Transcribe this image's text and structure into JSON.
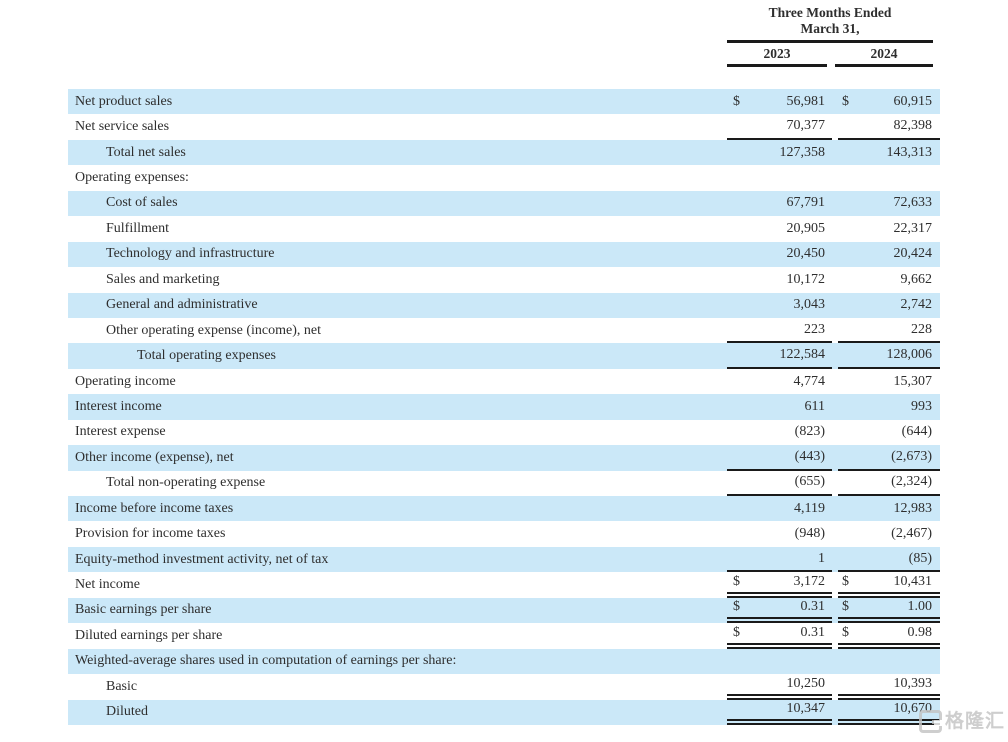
{
  "header": {
    "period_line1": "Three Months Ended",
    "period_line2": "March 31,",
    "years": [
      "2023",
      "2024"
    ]
  },
  "table": {
    "rows": [
      {
        "label": "Net product sales",
        "indent": 0,
        "shaded": true,
        "d1": "$",
        "v1": "56,981",
        "d2": "$",
        "v2": "60,915",
        "rule": "none"
      },
      {
        "label": "Net service sales",
        "indent": 0,
        "shaded": false,
        "d1": "",
        "v1": "70,377",
        "d2": "",
        "v2": "82,398",
        "rule": "single"
      },
      {
        "label": "Total net sales",
        "indent": 1,
        "shaded": true,
        "d1": "",
        "v1": "127,358",
        "d2": "",
        "v2": "143,313",
        "rule": "none"
      },
      {
        "label": "Operating expenses:",
        "indent": 0,
        "shaded": false,
        "d1": "",
        "v1": "",
        "d2": "",
        "v2": "",
        "rule": "none"
      },
      {
        "label": "Cost of sales",
        "indent": 1,
        "shaded": true,
        "d1": "",
        "v1": "67,791",
        "d2": "",
        "v2": "72,633",
        "rule": "none"
      },
      {
        "label": "Fulfillment",
        "indent": 1,
        "shaded": false,
        "d1": "",
        "v1": "20,905",
        "d2": "",
        "v2": "22,317",
        "rule": "none"
      },
      {
        "label": "Technology and infrastructure",
        "indent": 1,
        "shaded": true,
        "d1": "",
        "v1": "20,450",
        "d2": "",
        "v2": "20,424",
        "rule": "none"
      },
      {
        "label": "Sales and marketing",
        "indent": 1,
        "shaded": false,
        "d1": "",
        "v1": "10,172",
        "d2": "",
        "v2": "9,662",
        "rule": "none"
      },
      {
        "label": "General and administrative",
        "indent": 1,
        "shaded": true,
        "d1": "",
        "v1": "3,043",
        "d2": "",
        "v2": "2,742",
        "rule": "none"
      },
      {
        "label": "Other operating expense (income), net",
        "indent": 1,
        "shaded": false,
        "d1": "",
        "v1": "223",
        "d2": "",
        "v2": "228",
        "rule": "single"
      },
      {
        "label": "Total operating expenses",
        "indent": 2,
        "shaded": true,
        "d1": "",
        "v1": "122,584",
        "d2": "",
        "v2": "128,006",
        "rule": "single"
      },
      {
        "label": "Operating income",
        "indent": 0,
        "shaded": false,
        "d1": "",
        "v1": "4,774",
        "d2": "",
        "v2": "15,307",
        "rule": "none"
      },
      {
        "label": "Interest income",
        "indent": 0,
        "shaded": true,
        "d1": "",
        "v1": "611",
        "d2": "",
        "v2": "993",
        "rule": "none"
      },
      {
        "label": "Interest expense",
        "indent": 0,
        "shaded": false,
        "d1": "",
        "v1": "(823)",
        "d2": "",
        "v2": "(644)",
        "rule": "none"
      },
      {
        "label": "Other income (expense), net",
        "indent": 0,
        "shaded": true,
        "d1": "",
        "v1": "(443)",
        "d2": "",
        "v2": "(2,673)",
        "rule": "single"
      },
      {
        "label": "Total non-operating expense",
        "indent": 1,
        "shaded": false,
        "d1": "",
        "v1": "(655)",
        "d2": "",
        "v2": "(2,324)",
        "rule": "single"
      },
      {
        "label": "Income before income taxes",
        "indent": 0,
        "shaded": true,
        "d1": "",
        "v1": "4,119",
        "d2": "",
        "v2": "12,983",
        "rule": "none"
      },
      {
        "label": "Provision for income taxes",
        "indent": 0,
        "shaded": false,
        "d1": "",
        "v1": "(948)",
        "d2": "",
        "v2": "(2,467)",
        "rule": "none"
      },
      {
        "label": "Equity-method investment activity, net of tax",
        "indent": 0,
        "shaded": true,
        "d1": "",
        "v1": "1",
        "d2": "",
        "v2": "(85)",
        "rule": "single"
      },
      {
        "label": "Net income",
        "indent": 0,
        "shaded": false,
        "d1": "$",
        "v1": "3,172",
        "d2": "$",
        "v2": "10,431",
        "rule": "double"
      },
      {
        "label": "Basic earnings per share",
        "indent": 0,
        "shaded": true,
        "d1": "$",
        "v1": "0.31",
        "d2": "$",
        "v2": "1.00",
        "rule": "double"
      },
      {
        "label": "Diluted earnings per share",
        "indent": 0,
        "shaded": false,
        "d1": "$",
        "v1": "0.31",
        "d2": "$",
        "v2": "0.98",
        "rule": "double"
      },
      {
        "label": "Weighted-average shares used in computation of earnings per share:",
        "indent": 0,
        "shaded": true,
        "d1": "",
        "v1": "",
        "d2": "",
        "v2": "",
        "rule": "none"
      },
      {
        "label": "Basic",
        "indent": 1,
        "shaded": false,
        "d1": "",
        "v1": "10,250",
        "d2": "",
        "v2": "10,393",
        "rule": "double"
      },
      {
        "label": "Diluted",
        "indent": 1,
        "shaded": true,
        "d1": "",
        "v1": "10,347",
        "d2": "",
        "v2": "10,670",
        "rule": "double"
      }
    ]
  },
  "watermark": {
    "text": "格隆汇"
  },
  "colors": {
    "row_highlight": "#cbe8f8",
    "rule": "#1a1a1a",
    "text": "#2e2e2e",
    "watermark": "#c3c3c3"
  }
}
